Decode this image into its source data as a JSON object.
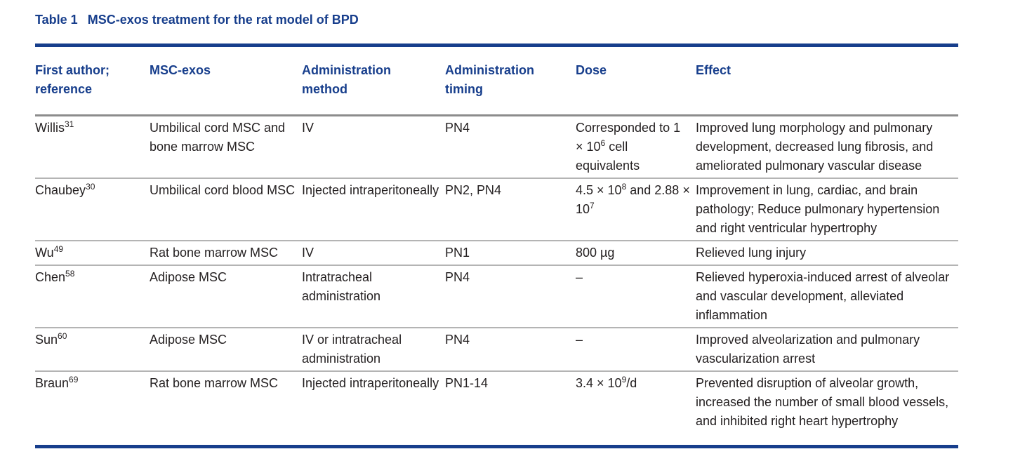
{
  "title": {
    "label": "Table 1",
    "text": "MSC-exos treatment for the rat model of BPD"
  },
  "table": {
    "headers": [
      "First author; reference",
      "MSC-exos",
      "Administration method",
      "Administration timing",
      "Dose",
      "Effect"
    ],
    "rows": [
      [
        [
          {
            "text": "Willis"
          },
          {
            "sup": "31"
          }
        ],
        [
          {
            "text": "Umbilical cord MSC and bone marrow MSC"
          }
        ],
        [
          {
            "text": "IV"
          }
        ],
        [
          {
            "text": "PN4"
          }
        ],
        [
          {
            "text": "Corresponded to 1 × 10"
          },
          {
            "sup": "6"
          },
          {
            "text": " cell equivalents"
          }
        ],
        [
          {
            "text": "Improved lung morphology and pulmonary development, decreased lung fibrosis, and ameliorated pulmonary vascular disease"
          }
        ]
      ],
      [
        [
          {
            "text": "Chaubey"
          },
          {
            "sup": "30"
          }
        ],
        [
          {
            "text": "Umbilical cord blood MSC"
          }
        ],
        [
          {
            "text": "Injected intraperitoneally"
          }
        ],
        [
          {
            "text": "PN2, PN4"
          }
        ],
        [
          {
            "text": "4.5 × 10"
          },
          {
            "sup": "8"
          },
          {
            "text": " and 2.88 × 10"
          },
          {
            "sup": "7"
          }
        ],
        [
          {
            "text": "Improvement in lung, cardiac, and brain pathology; Reduce pulmonary hypertension and right ventricular hypertrophy"
          }
        ]
      ],
      [
        [
          {
            "text": "Wu"
          },
          {
            "sup": "49"
          }
        ],
        [
          {
            "text": "Rat bone marrow MSC"
          }
        ],
        [
          {
            "text": "IV"
          }
        ],
        [
          {
            "text": "PN1"
          }
        ],
        [
          {
            "text": "800 µg"
          }
        ],
        [
          {
            "text": "Relieved lung injury"
          }
        ]
      ],
      [
        [
          {
            "text": "Chen"
          },
          {
            "sup": "58"
          }
        ],
        [
          {
            "text": "Adipose MSC"
          }
        ],
        [
          {
            "text": "Intratracheal administration"
          }
        ],
        [
          {
            "text": "PN4"
          }
        ],
        [
          {
            "text": "–"
          }
        ],
        [
          {
            "text": "Relieved hyperoxia-induced arrest of alveolar and vascular development, alleviated inflammation"
          }
        ]
      ],
      [
        [
          {
            "text": "Sun"
          },
          {
            "sup": "60"
          }
        ],
        [
          {
            "text": "Adipose MSC"
          }
        ],
        [
          {
            "text": "IV or intratracheal administration"
          }
        ],
        [
          {
            "text": "PN4"
          }
        ],
        [
          {
            "text": "–"
          }
        ],
        [
          {
            "text": "Improved alveolarization and pulmonary vascularization arrest"
          }
        ]
      ],
      [
        [
          {
            "text": "Braun"
          },
          {
            "sup": "69"
          }
        ],
        [
          {
            "text": "Rat bone marrow MSC"
          }
        ],
        [
          {
            "text": "Injected intraperitoneally"
          }
        ],
        [
          {
            "text": "PN1-14"
          }
        ],
        [
          {
            "text": "3.4 × 10"
          },
          {
            "sup": "9"
          },
          {
            "text": "/d"
          }
        ],
        [
          {
            "text": "Prevented disruption of alveolar growth, increased the number of small blood vessels, and inhibited right heart hypertrophy"
          }
        ]
      ]
    ]
  }
}
